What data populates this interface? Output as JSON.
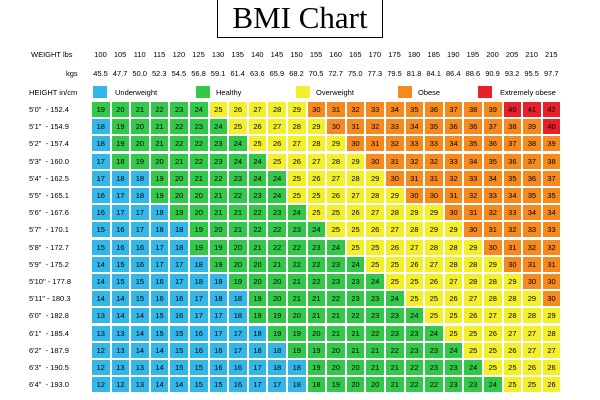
{
  "title": "BMI Chart",
  "labels": {
    "weight_lbs": "WEIGHT lbs",
    "kgs": "kgs",
    "height": "HEIGHT in/cm"
  },
  "colors": {
    "underweight": "#33b6e8",
    "healthy": "#33c84a",
    "overweight": "#f4ef2c",
    "obese": "#f68a1e",
    "extremely_obese": "#e8202a"
  },
  "chart_data": {
    "type": "heatmap",
    "title": "BMI Chart",
    "weights_lbs": [
      "100",
      "105",
      "110",
      "115",
      "120",
      "125",
      "130",
      "135",
      "140",
      "145",
      "150",
      "155",
      "160",
      "165",
      "170",
      "175",
      "180",
      "185",
      "190",
      "195",
      "200",
      "205",
      "210",
      "215"
    ],
    "weights_kgs": [
      "45.5",
      "47.7",
      "50.0",
      "52.3",
      "54.5",
      "56.8",
      "59.1",
      "61.4",
      "63.6",
      "65.9",
      "68.2",
      "70.5",
      "72.7",
      "75.0",
      "77.3",
      "79.5",
      "81.8",
      "84.1",
      "86.4",
      "88.6",
      "90.9",
      "93.2",
      "95.5",
      "97.7"
    ],
    "heights": [
      "5'0\"  - 152.4",
      "5'1\"  - 154.9",
      "5'2\"  - 157.4",
      "5'3\"  - 160.0",
      "5'4\"  - 162.5",
      "5'5\"  - 165.1",
      "5'6\"  - 167.6",
      "5'7\"  - 170.1",
      "5'8\"  - 172.7",
      "5'9\"  - 175.2",
      "5'10\" - 177.8",
      "5'11\" - 180.3",
      "6'0\"  - 182.8",
      "6'1\"  - 185.4",
      "6'2\"  - 187.9",
      "6'3\"  - 190.5",
      "6'4\"  - 193.0"
    ],
    "legend": [
      {
        "label": "Underweight",
        "category": "underweight"
      },
      {
        "label": "Healthy",
        "category": "healthy"
      },
      {
        "label": "Overweight",
        "category": "overweight"
      },
      {
        "label": "Obese",
        "category": "obese"
      },
      {
        "label": "Extremely obese",
        "category": "extremely_obese"
      }
    ],
    "values": [
      [
        19,
        20,
        21,
        22,
        23,
        24,
        25,
        26,
        27,
        28,
        29,
        30,
        31,
        32,
        33,
        34,
        35,
        36,
        37,
        38,
        39,
        40,
        41,
        42
      ],
      [
        18,
        19,
        20,
        21,
        22,
        23,
        24,
        25,
        26,
        27,
        28,
        29,
        30,
        31,
        32,
        33,
        34,
        35,
        36,
        36,
        37,
        38,
        39,
        40
      ],
      [
        18,
        19,
        20,
        21,
        22,
        22,
        23,
        24,
        25,
        26,
        27,
        28,
        29,
        30,
        31,
        32,
        33,
        33,
        34,
        35,
        36,
        37,
        38,
        39
      ],
      [
        17,
        18,
        19,
        20,
        21,
        22,
        23,
        24,
        24,
        25,
        26,
        27,
        28,
        29,
        30,
        31,
        32,
        32,
        33,
        34,
        35,
        36,
        37,
        38
      ],
      [
        17,
        18,
        18,
        19,
        20,
        21,
        22,
        23,
        24,
        24,
        25,
        26,
        27,
        28,
        29,
        30,
        31,
        31,
        32,
        33,
        34,
        35,
        36,
        37
      ],
      [
        16,
        17,
        18,
        19,
        20,
        20,
        21,
        22,
        23,
        24,
        25,
        25,
        26,
        27,
        28,
        29,
        30,
        30,
        31,
        32,
        33,
        34,
        35,
        35
      ],
      [
        16,
        17,
        17,
        18,
        19,
        20,
        21,
        21,
        22,
        23,
        24,
        25,
        25,
        26,
        27,
        28,
        29,
        29,
        30,
        31,
        32,
        33,
        34,
        34
      ],
      [
        15,
        16,
        17,
        18,
        18,
        19,
        20,
        21,
        22,
        22,
        23,
        24,
        25,
        25,
        26,
        27,
        28,
        29,
        29,
        30,
        31,
        32,
        33,
        33
      ],
      [
        15,
        16,
        16,
        17,
        18,
        19,
        19,
        20,
        21,
        22,
        22,
        23,
        24,
        25,
        25,
        26,
        27,
        28,
        28,
        29,
        30,
        31,
        32,
        32
      ],
      [
        14,
        15,
        16,
        17,
        17,
        18,
        19,
        20,
        20,
        21,
        22,
        22,
        23,
        24,
        25,
        25,
        26,
        27,
        28,
        28,
        29,
        30,
        31,
        31
      ],
      [
        14,
        15,
        15,
        16,
        17,
        18,
        18,
        19,
        20,
        20,
        21,
        22,
        23,
        23,
        24,
        25,
        25,
        26,
        27,
        28,
        28,
        29,
        30,
        30
      ],
      [
        14,
        14,
        15,
        16,
        16,
        17,
        18,
        18,
        19,
        20,
        21,
        21,
        22,
        23,
        23,
        24,
        25,
        25,
        26,
        27,
        28,
        28,
        29,
        30
      ],
      [
        13,
        14,
        14,
        15,
        16,
        17,
        17,
        18,
        19,
        19,
        20,
        21,
        21,
        22,
        23,
        23,
        24,
        25,
        25,
        26,
        27,
        28,
        28,
        29
      ],
      [
        13,
        13,
        14,
        15,
        15,
        16,
        17,
        17,
        18,
        19,
        19,
        20,
        21,
        21,
        22,
        23,
        23,
        24,
        25,
        25,
        26,
        27,
        27,
        28
      ],
      [
        12,
        13,
        14,
        14,
        15,
        16,
        16,
        17,
        18,
        18,
        19,
        19,
        20,
        21,
        21,
        22,
        23,
        23,
        24,
        25,
        25,
        26,
        27,
        27
      ],
      [
        12,
        13,
        13,
        14,
        15,
        15,
        16,
        16,
        17,
        18,
        18,
        19,
        20,
        20,
        21,
        21,
        22,
        23,
        23,
        24,
        25,
        25,
        26,
        26
      ],
      [
        12,
        12,
        13,
        14,
        14,
        15,
        15,
        16,
        17,
        17,
        18,
        18,
        19,
        20,
        20,
        21,
        22,
        22,
        23,
        23,
        24,
        25,
        25,
        26
      ]
    ],
    "categories": [
      [
        "h",
        "h",
        "h",
        "h",
        "h",
        "h",
        "v",
        "v",
        "v",
        "v",
        "v",
        "o",
        "o",
        "o",
        "o",
        "o",
        "o",
        "o",
        "o",
        "o",
        "o",
        "e",
        "e",
        "e"
      ],
      [
        "u",
        "h",
        "h",
        "h",
        "h",
        "h",
        "h",
        "v",
        "v",
        "v",
        "v",
        "v",
        "o",
        "o",
        "o",
        "o",
        "o",
        "o",
        "o",
        "o",
        "o",
        "o",
        "o",
        "e"
      ],
      [
        "u",
        "h",
        "h",
        "h",
        "h",
        "h",
        "h",
        "h",
        "v",
        "v",
        "v",
        "v",
        "v",
        "o",
        "o",
        "o",
        "o",
        "o",
        "o",
        "o",
        "o",
        "o",
        "o",
        "o"
      ],
      [
        "u",
        "h",
        "h",
        "h",
        "h",
        "h",
        "h",
        "h",
        "h",
        "v",
        "v",
        "v",
        "v",
        "v",
        "o",
        "o",
        "o",
        "o",
        "o",
        "o",
        "o",
        "o",
        "o",
        "o"
      ],
      [
        "u",
        "u",
        "u",
        "h",
        "h",
        "h",
        "h",
        "h",
        "h",
        "h",
        "v",
        "v",
        "v",
        "v",
        "v",
        "o",
        "o",
        "o",
        "o",
        "o",
        "o",
        "o",
        "o",
        "o"
      ],
      [
        "u",
        "u",
        "u",
        "h",
        "h",
        "h",
        "h",
        "h",
        "h",
        "h",
        "v",
        "v",
        "v",
        "v",
        "v",
        "v",
        "o",
        "o",
        "o",
        "o",
        "o",
        "o",
        "o",
        "o"
      ],
      [
        "u",
        "u",
        "u",
        "u",
        "h",
        "h",
        "h",
        "h",
        "h",
        "h",
        "h",
        "v",
        "v",
        "v",
        "v",
        "v",
        "v",
        "v",
        "o",
        "o",
        "o",
        "o",
        "o",
        "o"
      ],
      [
        "u",
        "u",
        "u",
        "u",
        "u",
        "h",
        "h",
        "h",
        "h",
        "h",
        "h",
        "h",
        "v",
        "v",
        "v",
        "v",
        "v",
        "v",
        "v",
        "o",
        "o",
        "o",
        "o",
        "o"
      ],
      [
        "u",
        "u",
        "u",
        "u",
        "u",
        "h",
        "h",
        "h",
        "h",
        "h",
        "h",
        "h",
        "h",
        "v",
        "v",
        "v",
        "v",
        "v",
        "v",
        "v",
        "o",
        "o",
        "o",
        "o"
      ],
      [
        "u",
        "u",
        "u",
        "u",
        "u",
        "u",
        "h",
        "h",
        "h",
        "h",
        "h",
        "h",
        "h",
        "h",
        "v",
        "v",
        "v",
        "v",
        "v",
        "v",
        "v",
        "o",
        "o",
        "o"
      ],
      [
        "u",
        "u",
        "u",
        "u",
        "u",
        "u",
        "u",
        "h",
        "h",
        "h",
        "h",
        "h",
        "h",
        "h",
        "h",
        "v",
        "v",
        "v",
        "v",
        "v",
        "v",
        "v",
        "o",
        "o"
      ],
      [
        "u",
        "u",
        "u",
        "u",
        "u",
        "u",
        "u",
        "u",
        "h",
        "h",
        "h",
        "h",
        "h",
        "h",
        "h",
        "h",
        "v",
        "v",
        "v",
        "v",
        "v",
        "v",
        "v",
        "o"
      ],
      [
        "u",
        "u",
        "u",
        "u",
        "u",
        "u",
        "u",
        "u",
        "h",
        "h",
        "h",
        "h",
        "h",
        "h",
        "h",
        "h",
        "h",
        "v",
        "v",
        "v",
        "v",
        "v",
        "v",
        "v"
      ],
      [
        "u",
        "u",
        "u",
        "u",
        "u",
        "u",
        "u",
        "u",
        "u",
        "h",
        "h",
        "h",
        "h",
        "h",
        "h",
        "h",
        "h",
        "h",
        "v",
        "v",
        "v",
        "v",
        "v",
        "v"
      ],
      [
        "u",
        "u",
        "u",
        "u",
        "u",
        "u",
        "u",
        "u",
        "u",
        "u",
        "h",
        "h",
        "h",
        "h",
        "h",
        "h",
        "h",
        "h",
        "h",
        "v",
        "v",
        "v",
        "v",
        "v"
      ],
      [
        "u",
        "u",
        "u",
        "u",
        "u",
        "u",
        "u",
        "u",
        "u",
        "u",
        "u",
        "h",
        "h",
        "h",
        "h",
        "h",
        "h",
        "h",
        "h",
        "h",
        "v",
        "v",
        "v",
        "v"
      ],
      [
        "u",
        "u",
        "u",
        "u",
        "u",
        "u",
        "u",
        "u",
        "u",
        "u",
        "u",
        "h",
        "h",
        "h",
        "h",
        "h",
        "h",
        "h",
        "h",
        "h",
        "h",
        "v",
        "v",
        "v"
      ]
    ]
  }
}
